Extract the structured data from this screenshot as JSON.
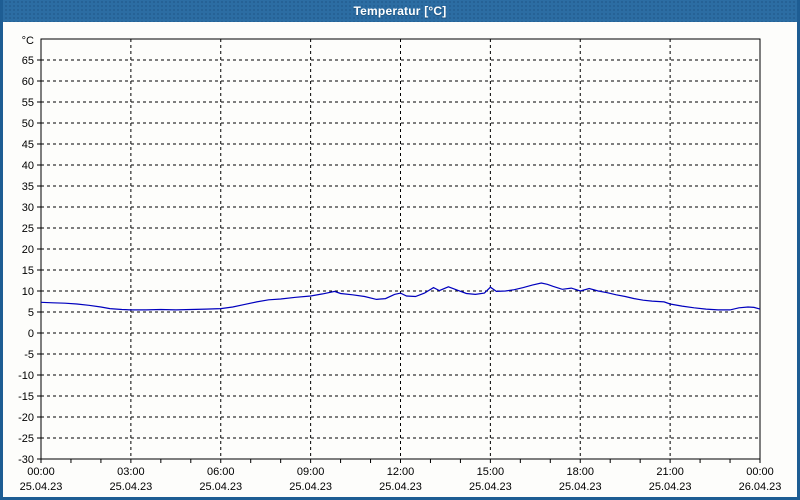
{
  "window": {
    "title": "Temperatur [°C]",
    "titlebar_color": "#2C6DA3",
    "border_color": "#1E5D93",
    "title_text_color": "#FFFFFF"
  },
  "chart_data": {
    "type": "line",
    "title": "Temperatur [°C]",
    "y_unit": "°C",
    "ylim": [
      -30,
      70
    ],
    "y_ticks": [
      65,
      60,
      55,
      50,
      45,
      40,
      35,
      30,
      25,
      20,
      15,
      10,
      5,
      0,
      -5,
      -10,
      -15,
      -20,
      -25,
      -30
    ],
    "xlim_hours": [
      0,
      24
    ],
    "x_tick_step_hours": 3,
    "x_minor_step": 1,
    "grid": "dashed-black",
    "line_color": "#0000BE",
    "x_ticks": [
      {
        "time": "00:00",
        "date": "25.04.23"
      },
      {
        "time": "03:00",
        "date": "25.04.23"
      },
      {
        "time": "06:00",
        "date": "25.04.23"
      },
      {
        "time": "09:00",
        "date": "25.04.23"
      },
      {
        "time": "12:00",
        "date": "25.04.23"
      },
      {
        "time": "15:00",
        "date": "25.04.23"
      },
      {
        "time": "18:00",
        "date": "25.04.23"
      },
      {
        "time": "21:00",
        "date": "25.04.23"
      },
      {
        "time": "00:00",
        "date": "26.04.23"
      }
    ],
    "series": [
      {
        "name": "Temperatur",
        "points": [
          [
            0,
            7.3
          ],
          [
            0.4,
            7.2
          ],
          [
            0.8,
            7.1
          ],
          [
            1.2,
            6.9
          ],
          [
            1.6,
            6.6
          ],
          [
            2.0,
            6.2
          ],
          [
            2.3,
            5.8
          ],
          [
            2.7,
            5.6
          ],
          [
            3.0,
            5.5
          ],
          [
            3.5,
            5.5
          ],
          [
            4.0,
            5.6
          ],
          [
            4.5,
            5.5
          ],
          [
            5.0,
            5.6
          ],
          [
            5.5,
            5.7
          ],
          [
            6.0,
            5.8
          ],
          [
            6.4,
            6.2
          ],
          [
            6.8,
            6.8
          ],
          [
            7.2,
            7.4
          ],
          [
            7.6,
            7.9
          ],
          [
            8.0,
            8.1
          ],
          [
            8.5,
            8.5
          ],
          [
            9.0,
            8.8
          ],
          [
            9.4,
            9.3
          ],
          [
            9.8,
            9.9
          ],
          [
            10.0,
            9.4
          ],
          [
            10.4,
            9.1
          ],
          [
            10.8,
            8.7
          ],
          [
            11.2,
            8.0
          ],
          [
            11.5,
            8.2
          ],
          [
            11.8,
            9.2
          ],
          [
            12.0,
            9.5
          ],
          [
            12.2,
            8.8
          ],
          [
            12.5,
            8.7
          ],
          [
            12.8,
            9.5
          ],
          [
            13.1,
            10.8
          ],
          [
            13.3,
            10.1
          ],
          [
            13.6,
            11.0
          ],
          [
            13.9,
            10.2
          ],
          [
            14.2,
            9.4
          ],
          [
            14.5,
            9.2
          ],
          [
            14.8,
            9.5
          ],
          [
            15.0,
            10.9
          ],
          [
            15.2,
            9.9
          ],
          [
            15.5,
            10.0
          ],
          [
            15.8,
            10.3
          ],
          [
            16.1,
            10.8
          ],
          [
            16.4,
            11.4
          ],
          [
            16.7,
            11.9
          ],
          [
            16.9,
            11.6
          ],
          [
            17.1,
            11.1
          ],
          [
            17.4,
            10.4
          ],
          [
            17.7,
            10.7
          ],
          [
            18.0,
            10.0
          ],
          [
            18.3,
            10.6
          ],
          [
            18.6,
            10.0
          ],
          [
            18.9,
            9.6
          ],
          [
            19.2,
            9.1
          ],
          [
            19.5,
            8.7
          ],
          [
            19.8,
            8.2
          ],
          [
            20.1,
            7.8
          ],
          [
            20.4,
            7.6
          ],
          [
            20.8,
            7.4
          ],
          [
            21.0,
            6.9
          ],
          [
            21.4,
            6.4
          ],
          [
            21.8,
            6.0
          ],
          [
            22.2,
            5.7
          ],
          [
            22.6,
            5.5
          ],
          [
            23.0,
            5.5
          ],
          [
            23.3,
            6.0
          ],
          [
            23.6,
            6.2
          ],
          [
            23.8,
            6.1
          ],
          [
            24.0,
            5.7
          ]
        ]
      }
    ]
  }
}
